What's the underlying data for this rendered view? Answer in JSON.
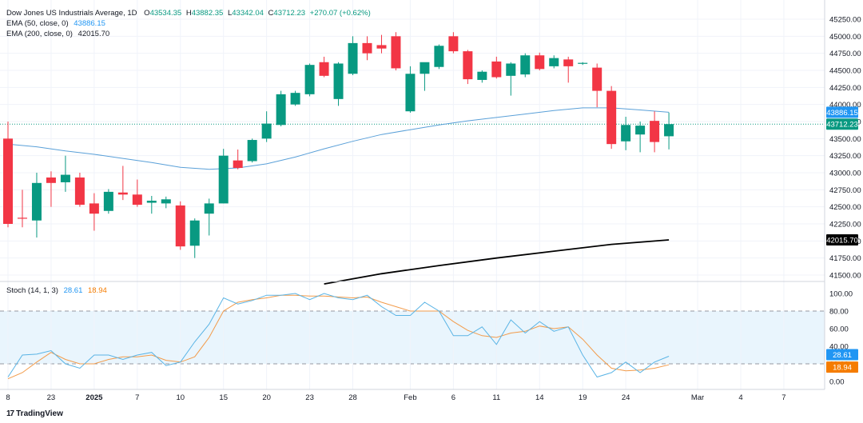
{
  "legend": {
    "title": "Dow Jones US Industrials Average, 1D",
    "open_label": "O",
    "open": "43534.35",
    "high_label": "H",
    "high": "43882.35",
    "low_label": "L",
    "low": "43342.04",
    "close_label": "C",
    "close": "43712.23",
    "change": "+270.07 (+0.62%)",
    "ema50_label": "EMA (50, close, 0)",
    "ema50_value": "43886.15",
    "ema200_label": "EMA (200, close, 0)",
    "ema200_value": "42015.70",
    "stoch_label": "Stoch (14, 1, 3)",
    "stoch_k": "28.61",
    "stoch_d": "18.94"
  },
  "footer": {
    "brand": "TradingView"
  },
  "colors": {
    "up": "#089981",
    "down": "#f23645",
    "ema50": "#5aa0d8",
    "ema200": "#000000",
    "stoch_k": "#5ab4e5",
    "stoch_d": "#f29b4a",
    "band": "#e3f2fd"
  },
  "chart_data": [
    {
      "type": "candlestick",
      "title": "Dow Jones US Industrials Average, 1D",
      "ylim": [
        41400,
        45350
      ],
      "y_ticks": [
        45250,
        45000,
        44750,
        44500,
        44250,
        44000,
        43750,
        43500,
        43250,
        43000,
        42750,
        42500,
        42250,
        42000,
        41750,
        41500
      ],
      "x_ticks": [
        {
          "label": "8",
          "slot": 0
        },
        {
          "label": "23",
          "slot": 3
        },
        {
          "label": "2025",
          "slot": 6
        },
        {
          "label": "7",
          "slot": 9
        },
        {
          "label": "10",
          "slot": 12
        },
        {
          "label": "15",
          "slot": 15
        },
        {
          "label": "20",
          "slot": 18
        },
        {
          "label": "23",
          "slot": 21
        },
        {
          "label": "28",
          "slot": 24
        },
        {
          "label": "Feb",
          "slot": 28
        },
        {
          "label": "6",
          "slot": 31
        },
        {
          "label": "11",
          "slot": 34
        },
        {
          "label": "14",
          "slot": 37
        },
        {
          "label": "19",
          "slot": 40
        },
        {
          "label": "24",
          "slot": 43
        },
        {
          "label": "Mar",
          "slot": 48
        },
        {
          "label": "4",
          "slot": 51
        },
        {
          "label": "7",
          "slot": 54
        }
      ],
      "last_price_label": "43712.23",
      "ema50_label": "43886.15",
      "ema200_label": "42015.70",
      "candles": [
        {
          "slot": 0,
          "o": 43500,
          "h": 43750,
          "l": 42200,
          "c": 42250
        },
        {
          "slot": 1,
          "o": 42340,
          "h": 42750,
          "l": 42200,
          "c": 42330
        },
        {
          "slot": 2,
          "o": 42300,
          "h": 43000,
          "l": 42050,
          "c": 42850
        },
        {
          "slot": 3,
          "o": 42930,
          "h": 43020,
          "l": 42500,
          "c": 42850
        },
        {
          "slot": 4,
          "o": 42860,
          "h": 43250,
          "l": 42720,
          "c": 42970
        },
        {
          "slot": 5,
          "o": 42930,
          "h": 43000,
          "l": 42500,
          "c": 42530
        },
        {
          "slot": 6,
          "o": 42550,
          "h": 42700,
          "l": 42150,
          "c": 42400
        },
        {
          "slot": 7,
          "o": 42440,
          "h": 42760,
          "l": 42400,
          "c": 42720
        },
        {
          "slot": 8,
          "o": 42710,
          "h": 43100,
          "l": 42600,
          "c": 42680
        },
        {
          "slot": 9,
          "o": 42680,
          "h": 42900,
          "l": 42500,
          "c": 42530
        },
        {
          "slot": 10,
          "o": 42560,
          "h": 42660,
          "l": 42400,
          "c": 42590
        },
        {
          "slot": 11,
          "o": 42550,
          "h": 42650,
          "l": 42480,
          "c": 42610
        },
        {
          "slot": 12,
          "o": 42520,
          "h": 42580,
          "l": 41870,
          "c": 41920
        },
        {
          "slot": 13,
          "o": 41930,
          "h": 42330,
          "l": 41750,
          "c": 42300
        },
        {
          "slot": 14,
          "o": 42400,
          "h": 42620,
          "l": 42080,
          "c": 42550
        },
        {
          "slot": 15,
          "o": 42550,
          "h": 43350,
          "l": 42550,
          "c": 43250
        },
        {
          "slot": 16,
          "o": 43180,
          "h": 43340,
          "l": 43050,
          "c": 43070
        },
        {
          "slot": 17,
          "o": 43170,
          "h": 43500,
          "l": 43150,
          "c": 43480
        },
        {
          "slot": 18,
          "o": 43500,
          "h": 43900,
          "l": 43450,
          "c": 43720
        },
        {
          "slot": 19,
          "o": 43700,
          "h": 44200,
          "l": 43680,
          "c": 44150
        },
        {
          "slot": 20,
          "o": 44000,
          "h": 44200,
          "l": 43980,
          "c": 44170
        },
        {
          "slot": 21,
          "o": 44150,
          "h": 44600,
          "l": 44120,
          "c": 44580
        },
        {
          "slot": 22,
          "o": 44620,
          "h": 44700,
          "l": 44400,
          "c": 44420
        },
        {
          "slot": 23,
          "o": 44080,
          "h": 44620,
          "l": 43980,
          "c": 44600
        },
        {
          "slot": 24,
          "o": 44450,
          "h": 45000,
          "l": 44430,
          "c": 44900
        },
        {
          "slot": 25,
          "o": 44900,
          "h": 45000,
          "l": 44650,
          "c": 44750
        },
        {
          "slot": 26,
          "o": 44870,
          "h": 45020,
          "l": 44750,
          "c": 44820
        },
        {
          "slot": 27,
          "o": 45000,
          "h": 45060,
          "l": 44500,
          "c": 44530
        },
        {
          "slot": 28,
          "o": 43900,
          "h": 44560,
          "l": 43880,
          "c": 44450
        },
        {
          "slot": 29,
          "o": 44450,
          "h": 44600,
          "l": 44200,
          "c": 44620
        },
        {
          "slot": 30,
          "o": 44550,
          "h": 44880,
          "l": 44520,
          "c": 44860
        },
        {
          "slot": 31,
          "o": 45000,
          "h": 45060,
          "l": 44750,
          "c": 44780
        },
        {
          "slot": 32,
          "o": 44780,
          "h": 44800,
          "l": 44300,
          "c": 44370
        },
        {
          "slot": 33,
          "o": 44360,
          "h": 44500,
          "l": 44320,
          "c": 44480
        },
        {
          "slot": 34,
          "o": 44630,
          "h": 44700,
          "l": 44380,
          "c": 44400
        },
        {
          "slot": 35,
          "o": 44420,
          "h": 44620,
          "l": 44130,
          "c": 44600
        },
        {
          "slot": 36,
          "o": 44440,
          "h": 44750,
          "l": 44400,
          "c": 44720
        },
        {
          "slot": 37,
          "o": 44720,
          "h": 44760,
          "l": 44500,
          "c": 44520
        },
        {
          "slot": 38,
          "o": 44560,
          "h": 44720,
          "l": 44530,
          "c": 44680
        },
        {
          "slot": 39,
          "o": 44660,
          "h": 44700,
          "l": 44320,
          "c": 44560
        },
        {
          "slot": 40,
          "o": 44600,
          "h": 44620,
          "l": 44580,
          "c": 44610
        },
        {
          "slot": 41,
          "o": 44540,
          "h": 44600,
          "l": 43960,
          "c": 44200
        },
        {
          "slot": 42,
          "o": 44200,
          "h": 44270,
          "l": 43350,
          "c": 43420
        },
        {
          "slot": 43,
          "o": 43460,
          "h": 43820,
          "l": 43330,
          "c": 43700
        },
        {
          "slot": 44,
          "o": 43560,
          "h": 43750,
          "l": 43300,
          "c": 43690
        },
        {
          "slot": 45,
          "o": 43760,
          "h": 43900,
          "l": 43300,
          "c": 43450
        },
        {
          "slot": 46,
          "o": 43534.35,
          "h": 43882.35,
          "l": 43342.04,
          "c": 43712.23
        }
      ],
      "ema50": [
        {
          "slot": 0,
          "v": 43420
        },
        {
          "slot": 2,
          "v": 43380
        },
        {
          "slot": 4,
          "v": 43320
        },
        {
          "slot": 6,
          "v": 43270
        },
        {
          "slot": 8,
          "v": 43210
        },
        {
          "slot": 10,
          "v": 43150
        },
        {
          "slot": 12,
          "v": 43080
        },
        {
          "slot": 14,
          "v": 43050
        },
        {
          "slot": 16,
          "v": 43070
        },
        {
          "slot": 18,
          "v": 43130
        },
        {
          "slot": 20,
          "v": 43230
        },
        {
          "slot": 22,
          "v": 43350
        },
        {
          "slot": 24,
          "v": 43460
        },
        {
          "slot": 26,
          "v": 43560
        },
        {
          "slot": 28,
          "v": 43630
        },
        {
          "slot": 30,
          "v": 43700
        },
        {
          "slot": 32,
          "v": 43760
        },
        {
          "slot": 34,
          "v": 43810
        },
        {
          "slot": 36,
          "v": 43860
        },
        {
          "slot": 38,
          "v": 43910
        },
        {
          "slot": 40,
          "v": 43950
        },
        {
          "slot": 42,
          "v": 43950
        },
        {
          "slot": 44,
          "v": 43920
        },
        {
          "slot": 46,
          "v": 43886.15
        }
      ],
      "ema200": [
        {
          "slot": 22,
          "v": 41370
        },
        {
          "slot": 26,
          "v": 41520
        },
        {
          "slot": 30,
          "v": 41640
        },
        {
          "slot": 34,
          "v": 41750
        },
        {
          "slot": 38,
          "v": 41850
        },
        {
          "slot": 42,
          "v": 41950
        },
        {
          "slot": 46,
          "v": 42015.7
        }
      ]
    },
    {
      "type": "line",
      "title": "Stoch (14, 1, 3)",
      "ylim": [
        -5,
        110
      ],
      "y_ticks": [
        100,
        80,
        60,
        40,
        20,
        0
      ],
      "y_tick_labels": [
        "100.00",
        "80.00",
        "60.00",
        "40.00",
        "20.00",
        "0.00"
      ],
      "bands": [
        80,
        20
      ],
      "k_label": "28.61",
      "d_label": "18.94",
      "series": [
        {
          "name": "%K",
          "values": [
            [
              0,
              5
            ],
            [
              1,
              30
            ],
            [
              2,
              31
            ],
            [
              3,
              35
            ],
            [
              4,
              20
            ],
            [
              5,
              15
            ],
            [
              6,
              30
            ],
            [
              7,
              30
            ],
            [
              8,
              25
            ],
            [
              9,
              30
            ],
            [
              10,
              33
            ],
            [
              11,
              18
            ],
            [
              12,
              22
            ],
            [
              13,
              45
            ],
            [
              14,
              65
            ],
            [
              15,
              95
            ],
            [
              16,
              88
            ],
            [
              17,
              92
            ],
            [
              18,
              98
            ],
            [
              19,
              98
            ],
            [
              20,
              100
            ],
            [
              21,
              93
            ],
            [
              22,
              100
            ],
            [
              23,
              95
            ],
            [
              24,
              93
            ],
            [
              25,
              98
            ],
            [
              26,
              85
            ],
            [
              27,
              75
            ],
            [
              28,
              75
            ],
            [
              29,
              90
            ],
            [
              30,
              80
            ],
            [
              31,
              52
            ],
            [
              32,
              52
            ],
            [
              33,
              62
            ],
            [
              34,
              42
            ],
            [
              35,
              70
            ],
            [
              36,
              55
            ],
            [
              37,
              68
            ],
            [
              38,
              57
            ],
            [
              39,
              62
            ],
            [
              40,
              30
            ],
            [
              41,
              5
            ],
            [
              42,
              10
            ],
            [
              43,
              22
            ],
            [
              44,
              10
            ],
            [
              45,
              22
            ],
            [
              46,
              28.61
            ]
          ]
        },
        {
          "name": "%D",
          "values": [
            [
              0,
              3
            ],
            [
              1,
              10
            ],
            [
              2,
              22
            ],
            [
              3,
              33
            ],
            [
              4,
              25
            ],
            [
              5,
              20
            ],
            [
              6,
              20
            ],
            [
              7,
              25
            ],
            [
              8,
              28
            ],
            [
              9,
              28
            ],
            [
              10,
              30
            ],
            [
              11,
              24
            ],
            [
              12,
              22
            ],
            [
              13,
              28
            ],
            [
              14,
              50
            ],
            [
              15,
              80
            ],
            [
              16,
              90
            ],
            [
              17,
              93
            ],
            [
              18,
              95
            ],
            [
              19,
              98
            ],
            [
              20,
              98
            ],
            [
              21,
              97
            ],
            [
              22,
              97
            ],
            [
              23,
              96
            ],
            [
              24,
              95
            ],
            [
              25,
              96
            ],
            [
              26,
              90
            ],
            [
              27,
              85
            ],
            [
              28,
              80
            ],
            [
              29,
              80
            ],
            [
              30,
              80
            ],
            [
              31,
              68
            ],
            [
              32,
              58
            ],
            [
              33,
              52
            ],
            [
              34,
              50
            ],
            [
              35,
              55
            ],
            [
              36,
              57
            ],
            [
              37,
              63
            ],
            [
              38,
              60
            ],
            [
              39,
              62
            ],
            [
              40,
              48
            ],
            [
              41,
              30
            ],
            [
              42,
              15
            ],
            [
              43,
              12
            ],
            [
              44,
              13
            ],
            [
              45,
              15
            ],
            [
              46,
              18.94
            ]
          ]
        }
      ]
    }
  ]
}
